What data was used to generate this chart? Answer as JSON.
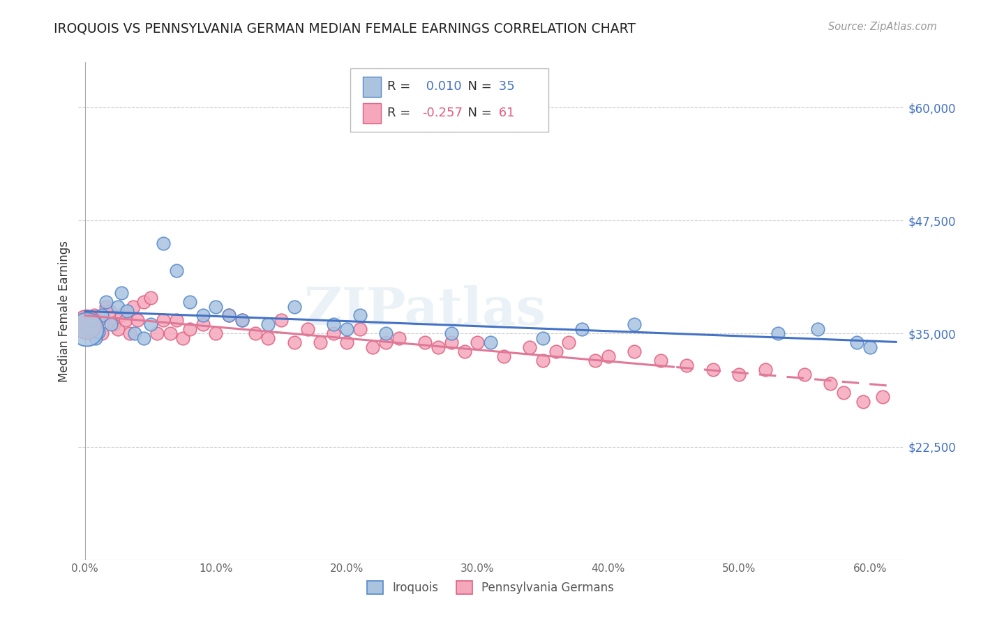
{
  "title": "IROQUOIS VS PENNSYLVANIA GERMAN MEDIAN FEMALE EARNINGS CORRELATION CHART",
  "source": "Source: ZipAtlas.com",
  "ylabel": "Median Female Earnings",
  "y_tick_labels": [
    "$22,500",
    "$35,000",
    "$47,500",
    "$60,000"
  ],
  "y_tick_values": [
    22500,
    35000,
    47500,
    60000
  ],
  "y_min": 10000,
  "y_max": 65000,
  "x_min": -0.005,
  "x_max": 0.625,
  "x_ticks": [
    0.0,
    0.1,
    0.2,
    0.3,
    0.4,
    0.5,
    0.6
  ],
  "x_tick_labels": [
    "0.0%",
    "10.0%",
    "20.0%",
    "30.0%",
    "40.0%",
    "50.0%",
    "60.0%"
  ],
  "iroquois_R": 0.01,
  "iroquois_N": 35,
  "pa_german_R": -0.257,
  "pa_german_N": 61,
  "iroquois_color": "#aac4e0",
  "iroquois_edge": "#5588cc",
  "pa_german_color": "#f5a8bc",
  "pa_german_edge": "#e06080",
  "trend_blue": "#4472c4",
  "trend_pink": "#e07898",
  "watermark": "ZIPatlas",
  "iroquois_x": [
    0.001,
    0.005,
    0.008,
    0.01,
    0.013,
    0.016,
    0.02,
    0.025,
    0.028,
    0.032,
    0.038,
    0.045,
    0.05,
    0.06,
    0.07,
    0.08,
    0.09,
    0.1,
    0.11,
    0.12,
    0.14,
    0.16,
    0.19,
    0.2,
    0.21,
    0.23,
    0.28,
    0.31,
    0.35,
    0.38,
    0.42,
    0.53,
    0.56,
    0.59,
    0.6
  ],
  "iroquois_y": [
    35500,
    36500,
    34500,
    35200,
    37000,
    38500,
    36000,
    38000,
    39500,
    37500,
    35000,
    34500,
    36000,
    45000,
    42000,
    38500,
    37000,
    38000,
    37000,
    36500,
    36000,
    38000,
    36000,
    35500,
    37000,
    35000,
    35000,
    34000,
    34500,
    35500,
    36000,
    35000,
    35500,
    34000,
    33500
  ],
  "pa_german_x": [
    0.001,
    0.004,
    0.007,
    0.01,
    0.013,
    0.016,
    0.019,
    0.022,
    0.025,
    0.028,
    0.031,
    0.034,
    0.037,
    0.04,
    0.045,
    0.05,
    0.055,
    0.06,
    0.065,
    0.07,
    0.075,
    0.08,
    0.09,
    0.1,
    0.11,
    0.12,
    0.13,
    0.14,
    0.15,
    0.16,
    0.17,
    0.18,
    0.19,
    0.2,
    0.21,
    0.22,
    0.23,
    0.24,
    0.26,
    0.27,
    0.28,
    0.29,
    0.3,
    0.32,
    0.34,
    0.35,
    0.36,
    0.37,
    0.39,
    0.4,
    0.42,
    0.44,
    0.46,
    0.48,
    0.5,
    0.52,
    0.55,
    0.57,
    0.58,
    0.595,
    0.61
  ],
  "pa_german_y": [
    36000,
    35500,
    37000,
    36500,
    35000,
    38000,
    37500,
    36000,
    35500,
    37000,
    36500,
    35000,
    38000,
    36500,
    38500,
    39000,
    35000,
    36500,
    35000,
    36500,
    34500,
    35500,
    36000,
    35000,
    37000,
    36500,
    35000,
    34500,
    36500,
    34000,
    35500,
    34000,
    35000,
    34000,
    35500,
    33500,
    34000,
    34500,
    34000,
    33500,
    34000,
    33000,
    34000,
    32500,
    33500,
    32000,
    33000,
    34000,
    32000,
    32500,
    33000,
    32000,
    31500,
    31000,
    30500,
    31000,
    30500,
    29500,
    28500,
    27500,
    28000
  ],
  "trend_dashed_start": 0.45
}
